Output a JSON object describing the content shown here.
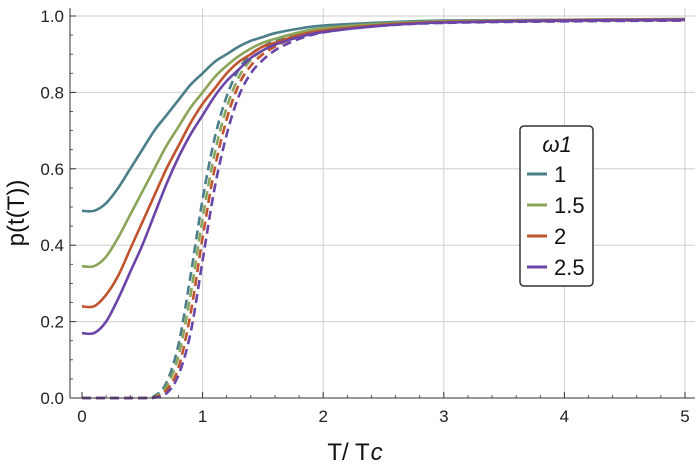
{
  "chart_data": {
    "type": "line",
    "title": "",
    "xlabel": "T/ T_c",
    "xlabel_main": "T/ T",
    "xlabel_sub": "c",
    "ylabel": "p(t(T))",
    "xlim": [
      -0.1,
      5.1
    ],
    "ylim": [
      0,
      1.0
    ],
    "xticks": [
      0,
      1,
      2,
      3,
      4,
      5
    ],
    "yticks": [
      0.0,
      0.2,
      0.4,
      0.6,
      0.8,
      1.0
    ],
    "xtick_labels": [
      "0",
      "1",
      "2",
      "3",
      "4",
      "5"
    ],
    "ytick_labels": [
      "0.0",
      "0.2",
      "0.4",
      "0.6",
      "0.8",
      "1.0"
    ],
    "grid": true,
    "legend": {
      "title": "ω1",
      "position": "center-right",
      "entries": [
        "1",
        "1.5",
        "2",
        "2.5"
      ]
    },
    "series": [
      {
        "name": "1",
        "style": "solid",
        "color": "#4a7f8a",
        "x": [
          0,
          0.1,
          0.2,
          0.3,
          0.4,
          0.5,
          0.6,
          0.7,
          0.8,
          0.9,
          1.0,
          1.1,
          1.2,
          1.3,
          1.4,
          1.5,
          1.6,
          1.8,
          2.0,
          2.5,
          3.0,
          4.0,
          5.0
        ],
        "y": [
          0.49,
          0.49,
          0.51,
          0.55,
          0.6,
          0.65,
          0.7,
          0.74,
          0.78,
          0.82,
          0.85,
          0.88,
          0.9,
          0.92,
          0.935,
          0.945,
          0.955,
          0.967,
          0.975,
          0.983,
          0.988,
          0.99,
          0.992
        ]
      },
      {
        "name": "1.5",
        "style": "solid",
        "color": "#8aa45a",
        "x": [
          0,
          0.1,
          0.2,
          0.3,
          0.4,
          0.5,
          0.6,
          0.7,
          0.8,
          0.9,
          1.0,
          1.1,
          1.2,
          1.3,
          1.4,
          1.5,
          1.6,
          1.8,
          2.0,
          2.5,
          3.0,
          4.0,
          5.0
        ],
        "y": [
          0.345,
          0.345,
          0.37,
          0.42,
          0.48,
          0.54,
          0.6,
          0.66,
          0.71,
          0.76,
          0.8,
          0.84,
          0.87,
          0.895,
          0.915,
          0.93,
          0.94,
          0.957,
          0.968,
          0.98,
          0.986,
          0.99,
          0.992
        ]
      },
      {
        "name": "2",
        "style": "solid",
        "color": "#c0552d",
        "x": [
          0,
          0.1,
          0.2,
          0.3,
          0.4,
          0.5,
          0.6,
          0.7,
          0.8,
          0.9,
          1.0,
          1.1,
          1.2,
          1.3,
          1.4,
          1.5,
          1.6,
          1.8,
          2.0,
          2.5,
          3.0,
          4.0,
          5.0
        ],
        "y": [
          0.24,
          0.24,
          0.27,
          0.32,
          0.39,
          0.46,
          0.53,
          0.6,
          0.66,
          0.72,
          0.77,
          0.81,
          0.85,
          0.88,
          0.9,
          0.92,
          0.93,
          0.95,
          0.962,
          0.977,
          0.984,
          0.989,
          0.991
        ]
      },
      {
        "name": "2.5",
        "style": "solid",
        "color": "#6a45a8",
        "x": [
          0,
          0.1,
          0.2,
          0.3,
          0.4,
          0.5,
          0.6,
          0.7,
          0.8,
          0.9,
          1.0,
          1.1,
          1.2,
          1.3,
          1.4,
          1.5,
          1.6,
          1.8,
          2.0,
          2.5,
          3.0,
          4.0,
          5.0
        ],
        "y": [
          0.17,
          0.17,
          0.2,
          0.26,
          0.33,
          0.4,
          0.48,
          0.56,
          0.63,
          0.69,
          0.74,
          0.79,
          0.83,
          0.86,
          0.89,
          0.91,
          0.925,
          0.945,
          0.958,
          0.975,
          0.983,
          0.988,
          0.99
        ]
      },
      {
        "name": "1 (dashed)",
        "style": "dashed",
        "color": "#4a7f8a",
        "x": [
          0,
          0.5,
          0.6,
          0.7,
          0.8,
          0.9,
          1.0,
          1.1,
          1.2,
          1.3,
          1.4,
          1.5,
          1.6,
          1.7,
          1.8,
          1.9,
          2.0,
          2.2,
          2.5,
          3.0,
          4.0,
          5.0
        ],
        "y": [
          0,
          0,
          0.005,
          0.04,
          0.14,
          0.32,
          0.52,
          0.68,
          0.79,
          0.86,
          0.9,
          0.92,
          0.935,
          0.945,
          0.955,
          0.962,
          0.968,
          0.975,
          0.98,
          0.985,
          0.988,
          0.99
        ]
      },
      {
        "name": "1.5 (dashed)",
        "style": "dashed",
        "color": "#8aa45a",
        "x": [
          0,
          0.5,
          0.6,
          0.7,
          0.8,
          0.9,
          1.0,
          1.1,
          1.2,
          1.3,
          1.4,
          1.5,
          1.6,
          1.7,
          1.8,
          1.9,
          2.0,
          2.2,
          2.5,
          3.0,
          4.0,
          5.0
        ],
        "y": [
          0,
          0,
          0.003,
          0.03,
          0.11,
          0.27,
          0.47,
          0.64,
          0.76,
          0.84,
          0.885,
          0.91,
          0.928,
          0.94,
          0.95,
          0.958,
          0.965,
          0.973,
          0.979,
          0.984,
          0.987,
          0.989
        ]
      },
      {
        "name": "2 (dashed)",
        "style": "dashed",
        "color": "#c0552d",
        "x": [
          0,
          0.5,
          0.6,
          0.7,
          0.8,
          0.9,
          1.0,
          1.1,
          1.2,
          1.3,
          1.4,
          1.5,
          1.6,
          1.7,
          1.8,
          1.9,
          2.0,
          2.2,
          2.5,
          3.0,
          4.0,
          5.0
        ],
        "y": [
          0,
          0,
          0.002,
          0.02,
          0.08,
          0.22,
          0.42,
          0.6,
          0.73,
          0.82,
          0.87,
          0.9,
          0.92,
          0.935,
          0.945,
          0.954,
          0.961,
          0.97,
          0.977,
          0.983,
          0.987,
          0.989
        ]
      },
      {
        "name": "2.5 (dashed)",
        "style": "dashed",
        "color": "#6a45a8",
        "x": [
          0,
          0.5,
          0.6,
          0.7,
          0.8,
          0.9,
          1.0,
          1.1,
          1.2,
          1.3,
          1.4,
          1.5,
          1.6,
          1.7,
          1.8,
          1.9,
          2.0,
          2.2,
          2.5,
          3.0,
          4.0,
          5.0
        ],
        "y": [
          0,
          0,
          0.001,
          0.012,
          0.06,
          0.17,
          0.36,
          0.55,
          0.69,
          0.79,
          0.85,
          0.885,
          0.91,
          0.927,
          0.94,
          0.95,
          0.957,
          0.967,
          0.975,
          0.982,
          0.986,
          0.988
        ]
      }
    ]
  }
}
